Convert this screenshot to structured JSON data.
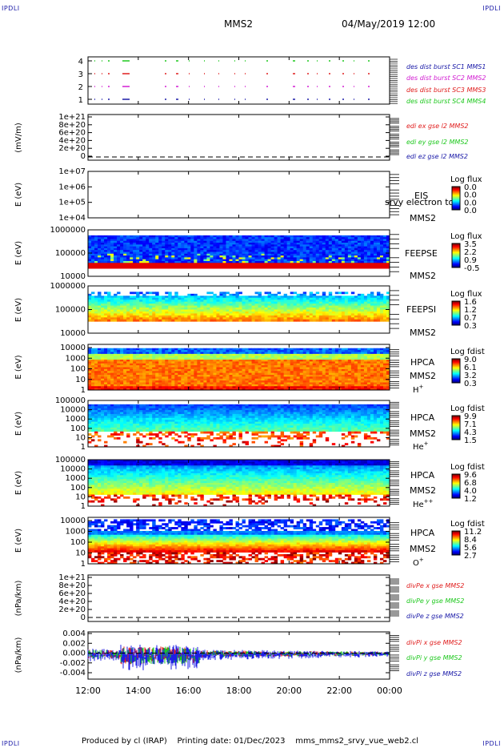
{
  "header": {
    "mission": "MMS2",
    "datetime": "04/May/2019 12:00",
    "corner_label": "IPDLI"
  },
  "footer": {
    "text": "Produced by cl (IRAP)    Printing date: 01/Dec/2023    mms_mms2_srvy_vue_web2.cl"
  },
  "colors": {
    "blue": "#1e1ee6",
    "red": "#e01e1e",
    "green": "#1ec81e",
    "magenta": "#d21ed2",
    "label_blue": "#1a1aa8"
  },
  "chart_data": [
    {
      "type": "scatter",
      "panel": "burst",
      "yticks": [
        "4",
        "3",
        "2",
        "1"
      ],
      "series": [
        {
          "name": "des dist burst SC1 MMS1",
          "color": "#1a1aa8",
          "y": 1
        },
        {
          "name": "des dist burst SC2 MMS2",
          "color": "#d21ed2",
          "y": 2
        },
        {
          "name": "des dist burst SC3 MMS3",
          "color": "#e01e1e",
          "y": 3
        },
        {
          "name": "des dist burst SC4 MMS4",
          "color": "#1ec81e",
          "y": 4
        }
      ]
    },
    {
      "type": "line",
      "panel": "edi",
      "ylabel": "(mV/m)",
      "yticks": [
        "1e+21",
        "8e+20",
        "6e+20",
        "4e+20",
        "2e+20",
        "0"
      ],
      "series": [
        {
          "name": "edi ex gse l2 MMS2",
          "color": "#e01e1e"
        },
        {
          "name": "edi ey gse l2 MMS2",
          "color": "#1ec81e"
        },
        {
          "name": "edi ez gse l2 MMS2",
          "color": "#1a1aa8"
        }
      ]
    },
    {
      "type": "heatmap",
      "panel": "eis",
      "ylabel": "E (eV)",
      "yticks": [
        "1e+07",
        "1e+06",
        "1e+05",
        "1e+04"
      ],
      "instrument": "EIS",
      "overlay_text": "srvy electron to",
      "spacecraft": "MMS2",
      "colorbar_title": "Log flux",
      "colorbar_ticks": [
        "0.0",
        "0.0",
        "0.0",
        "0.0"
      ]
    },
    {
      "type": "heatmap",
      "panel": "feepse",
      "ylabel": "E (eV)",
      "yticks": [
        "1000000",
        "100000",
        "10000"
      ],
      "instrument": "FEEPSE",
      "spacecraft": "MMS2",
      "colorbar_title": "Log flux",
      "colorbar_ticks": [
        "3.5",
        "2.2",
        "0.9",
        "-0.5"
      ]
    },
    {
      "type": "heatmap",
      "panel": "feepsi",
      "ylabel": "E (eV)",
      "yticks": [
        "1000000",
        "100000",
        "10000"
      ],
      "instrument": "FEEPSI",
      "spacecraft": "MMS2",
      "colorbar_title": "Log flux",
      "colorbar_ticks": [
        "1.6",
        "1.2",
        "0.7",
        "0.3"
      ]
    },
    {
      "type": "heatmap",
      "panel": "hpca_h",
      "ylabel": "E (eV)",
      "yticks": [
        "10000",
        "1000",
        "100",
        "10",
        "1"
      ],
      "instrument": "HPCA",
      "spacecraft": "MMS2",
      "species": "H",
      "charge": "+",
      "colorbar_title": "Log fdist",
      "colorbar_ticks": [
        "9.0",
        "6.1",
        "3.2",
        "0.3"
      ]
    },
    {
      "type": "heatmap",
      "panel": "hpca_he",
      "ylabel": "E (eV)",
      "yticks": [
        "100000",
        "10000",
        "1000",
        "100",
        "10",
        "1"
      ],
      "instrument": "HPCA",
      "spacecraft": "MMS2",
      "species": "He",
      "charge": "+",
      "colorbar_title": "Log fdist",
      "colorbar_ticks": [
        "9.9",
        "7.1",
        "4.3",
        "1.5"
      ]
    },
    {
      "type": "heatmap",
      "panel": "hpca_hepp",
      "ylabel": "E (eV)",
      "yticks": [
        "100000",
        "10000",
        "1000",
        "100",
        "10",
        "1"
      ],
      "instrument": "HPCA",
      "spacecraft": "MMS2",
      "species": "He",
      "charge": "++",
      "colorbar_title": "Log fdist",
      "colorbar_ticks": [
        "9.6",
        "6.8",
        "4.0",
        "1.2"
      ]
    },
    {
      "type": "heatmap",
      "panel": "hpca_o",
      "ylabel": "E (eV)",
      "yticks": [
        "10000",
        "1000",
        "100",
        "10",
        "1"
      ],
      "instrument": "HPCA",
      "spacecraft": "MMS2",
      "species": "O",
      "charge": "+",
      "colorbar_title": "Log fdist",
      "colorbar_ticks": [
        "11.2",
        "8.4",
        "5.6",
        "2.7"
      ]
    },
    {
      "type": "line",
      "panel": "divpe",
      "ylabel": "(nPa/km)",
      "yticks": [
        "1e+21",
        "8e+20",
        "6e+20",
        "4e+20",
        "2e+20",
        "0"
      ],
      "series": [
        {
          "name": "divPe x gse MMS2",
          "color": "#e01e1e"
        },
        {
          "name": "divPe y gse MMS2",
          "color": "#1ec81e"
        },
        {
          "name": "divPe z gse MMS2",
          "color": "#1a1aa8"
        }
      ]
    },
    {
      "type": "line",
      "panel": "divpi",
      "ylabel": "(nPa/km)",
      "yticks": [
        "0.004",
        "0.002",
        "0.000",
        "-0.002",
        "-0.004"
      ],
      "ylim": [
        -0.005,
        0.005
      ],
      "series": [
        {
          "name": "divPi x gse MMS2",
          "color": "#e01e1e"
        },
        {
          "name": "divPi y gse MMS2",
          "color": "#1ec81e"
        },
        {
          "name": "divPi z gse MMS2",
          "color": "#1a1aa8"
        }
      ]
    }
  ],
  "xaxis": {
    "ticks": [
      "12:00",
      "14:00",
      "16:00",
      "18:00",
      "20:00",
      "22:00",
      "00:00"
    ]
  }
}
